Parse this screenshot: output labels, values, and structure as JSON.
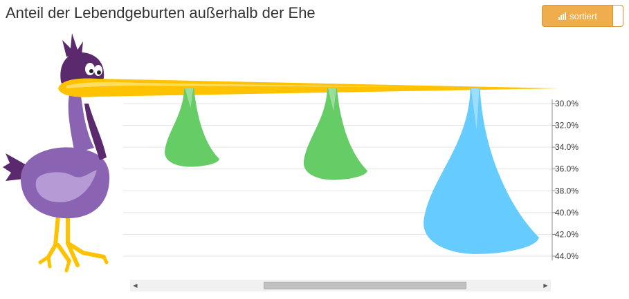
{
  "title": "Anteil der Lebendgeburten außerhalb der Ehe",
  "sort_toggle": {
    "label": "sortiert",
    "icon": "bar-chart-icon",
    "color": "#f0ad4e"
  },
  "colors": {
    "beak": "#ffc200",
    "stork_body": "#8a63b3",
    "stork_dark": "#5b2a6e",
    "drop_green": "#66cc66",
    "drop_blue": "#66ccff"
  },
  "chart_data": {
    "type": "bar",
    "title": "Anteil der Lebendgeburten außerhalb der Ehe",
    "xlabel": "",
    "ylabel": "",
    "ylim": [
      30,
      44
    ],
    "y_reversed": true,
    "y_ticks": [
      "30.0%",
      "32.0%",
      "34.0%",
      "36.0%",
      "38.0%",
      "40.0%",
      "42.0%",
      "44.0%"
    ],
    "grid": true,
    "categories": [
      "",
      "",
      ""
    ],
    "values": [
      35.8,
      37.0,
      43.8
    ],
    "drop_colors": [
      "#66cc66",
      "#66cc66",
      "#66ccff"
    ]
  },
  "scrollbar": {
    "left_arrow": "◀",
    "right_arrow": "▶"
  }
}
